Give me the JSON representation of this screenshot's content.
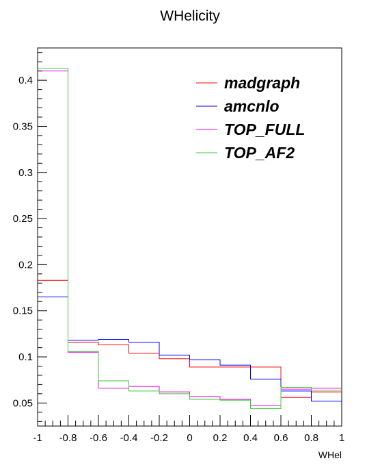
{
  "chart_data": {
    "type": "step",
    "title": "WHelicity",
    "xlabel": "WHel",
    "ylabel": "",
    "xlim": [
      -1,
      1
    ],
    "ylim": [
      0.025,
      0.435
    ],
    "x_ticks": [
      -1,
      -0.8,
      -0.6,
      -0.4,
      -0.2,
      0,
      0.2,
      0.4,
      0.6,
      0.8,
      1
    ],
    "x_tick_labels": [
      "-1",
      "-0.8",
      "-0.6",
      "-0.4",
      "-0.2",
      "0",
      "0.2",
      "0.4",
      "0.6",
      "0.8",
      "1"
    ],
    "y_ticks": [
      0.05,
      0.1,
      0.15,
      0.2,
      0.25,
      0.3,
      0.35,
      0.4
    ],
    "y_tick_labels": [
      "0.05",
      "0.1",
      "0.15",
      "0.2",
      "0.25",
      "0.3",
      "0.35",
      "0.4"
    ],
    "bin_edges": [
      -1,
      -0.8,
      -0.6,
      -0.4,
      -0.2,
      0,
      0.2,
      0.4,
      0.6,
      0.8,
      1
    ],
    "grid": false,
    "legend_position": "top-right",
    "series": [
      {
        "name": "madgraph",
        "color": "#ff0000",
        "values": [
          0.183,
          0.116,
          0.113,
          0.104,
          0.098,
          0.089,
          0.089,
          0.089,
          0.056,
          0.062
        ]
      },
      {
        "name": "amcnlo",
        "color": "#0000ff",
        "values": [
          0.165,
          0.118,
          0.119,
          0.116,
          0.102,
          0.097,
          0.091,
          0.076,
          0.063,
          0.052
        ]
      },
      {
        "name": "TOP_FULL",
        "color": "#ee00ee",
        "values": [
          0.41,
          0.105,
          0.066,
          0.068,
          0.062,
          0.057,
          0.054,
          0.047,
          0.065,
          0.066
        ]
      },
      {
        "name": "TOP_AF2",
        "color": "#33cc33",
        "values": [
          0.413,
          0.106,
          0.074,
          0.063,
          0.06,
          0.054,
          0.053,
          0.044,
          0.067,
          0.064
        ]
      }
    ]
  }
}
